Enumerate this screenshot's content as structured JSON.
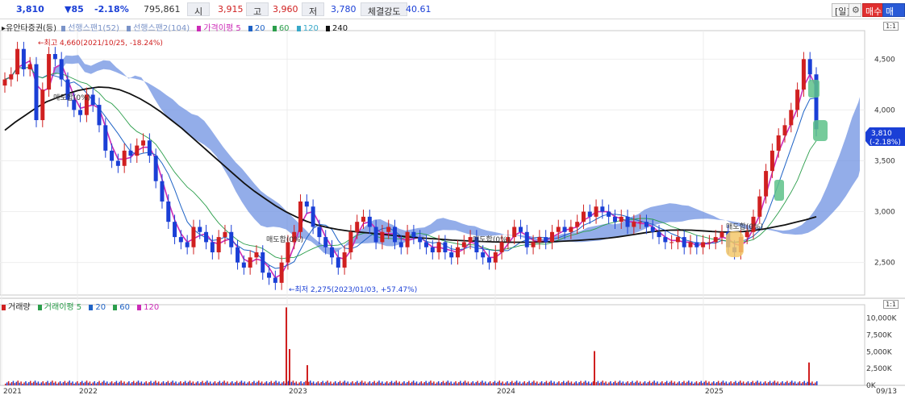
{
  "quote": {
    "price": "3,810",
    "change": "▼85",
    "change_pct": "-2.18%",
    "volume": "795,861",
    "open_label": "시",
    "open": "3,915",
    "high_label": "고",
    "high": "3,960",
    "low_label": "저",
    "low": "3,780",
    "strength_label": "체결강도",
    "strength": "40.61"
  },
  "toolbar": {
    "period": "[일]",
    "gear": "⚙",
    "buy": "매수",
    "sell": "매도"
  },
  "price_pane": {
    "header_name": "▸유안타증권(등)",
    "legend": [
      {
        "text": "선행스팬1(52)",
        "color": "#7a93c8"
      },
      {
        "text": "선행스팬2(104)",
        "color": "#7a93c8"
      },
      {
        "text": "가격이평 5",
        "color": "#cc2bb7"
      },
      {
        "text": "20",
        "color": "#1f63c6"
      },
      {
        "text": "60",
        "color": "#2b9e4b"
      },
      {
        "text": "120",
        "color": "#38a8c8"
      },
      {
        "text": "240",
        "color": "#111111"
      }
    ],
    "corner": "1:1"
  },
  "volume_pane": {
    "legend": [
      {
        "text": "거래량",
        "color": "#d02020"
      },
      {
        "text": "거래이평 5",
        "color": "#2b9e4b"
      },
      {
        "text": "20",
        "color": "#1f63c6"
      },
      {
        "text": "60",
        "color": "#2b9e4b"
      },
      {
        "text": "120",
        "color": "#cc2bb7"
      }
    ],
    "corner": "1:1"
  },
  "annotations": {
    "high": "←최고 4,660(2021/10/25, -18.24%)",
    "low": "←최저 2,275(2023/01/03, +57.47%)",
    "chip1": "매도합(0%)",
    "chip2": "매도합(0%)",
    "chip3": "매도합(0%)",
    "chip4": "매도합(0%)"
  },
  "price_tag": {
    "price": "3,810",
    "pct": "(-2.18%)"
  },
  "date_tag": "09/13",
  "chart_data": [
    {
      "type": "candlestick",
      "title": "유안타증권",
      "x_ticks": [
        "2021",
        "2022",
        "2023",
        "2024",
        "2025"
      ],
      "y_ticks": [
        2500,
        3000,
        3500,
        4000,
        4500
      ],
      "ylim": [
        2180,
        4780
      ],
      "series_names": [
        "선행스팬1(52)",
        "선행스팬2(104)",
        "가격이평 5",
        "20",
        "60",
        "120",
        "240"
      ],
      "close": [
        4300,
        4350,
        4600,
        4400,
        4450,
        3900,
        4200,
        4550,
        4500,
        4300,
        4100,
        4000,
        3950,
        4150,
        4050,
        3850,
        3600,
        3500,
        3450,
        3600,
        3550,
        3650,
        3700,
        3550,
        3300,
        3100,
        2900,
        2750,
        2700,
        2650,
        2850,
        2800,
        2700,
        2600,
        2750,
        2800,
        2650,
        2500,
        2450,
        2550,
        2600,
        2400,
        2350,
        2300,
        2500,
        2700,
        2800,
        3100,
        3050,
        2850,
        2750,
        2650,
        2550,
        2450,
        2600,
        2800,
        2900,
        2950,
        2850,
        2700,
        2800,
        2850,
        2700,
        2650,
        2800,
        2750,
        2700,
        2650,
        2600,
        2700,
        2600,
        2550,
        2650,
        2700,
        2750,
        2600,
        2550,
        2500,
        2600,
        2700,
        2750,
        2850,
        2800,
        2650,
        2700,
        2750,
        2700,
        2800,
        2850,
        2800,
        2850,
        2900,
        3000,
        2950,
        3050,
        3000,
        2950,
        2900,
        2950,
        2850,
        2900,
        2900,
        2850,
        2800,
        2750,
        2700,
        2700,
        2750,
        2650,
        2700,
        2650,
        2700,
        2700,
        2750,
        2800,
        2650,
        2600,
        2750,
        2800,
        2950,
        3150,
        3400,
        3600,
        3750,
        3850,
        4000,
        4200,
        4500,
        4350,
        3810
      ],
      "ma240": [
        3800,
        3880,
        3950,
        4020,
        4080,
        4120,
        4160,
        4190,
        4210,
        4225,
        4220,
        4200,
        4160,
        4110,
        4050,
        3980,
        3900,
        3820,
        3730,
        3640,
        3550,
        3460,
        3370,
        3280,
        3200,
        3130,
        3060,
        3000,
        2950,
        2905,
        2870,
        2845,
        2825,
        2810,
        2800,
        2790,
        2780,
        2770,
        2760,
        2750,
        2742,
        2735,
        2728,
        2720,
        2715,
        2710,
        2706,
        2702,
        2700,
        2699,
        2699,
        2700,
        2702,
        2706,
        2711,
        2717,
        2724,
        2731,
        2740,
        2752,
        2767,
        2784,
        2800,
        2812,
        2818,
        2820,
        2818,
        2812,
        2805,
        2800,
        2800,
        2805,
        2815,
        2830,
        2850,
        2870,
        2895,
        2920,
        2950
      ]
    },
    {
      "type": "bar",
      "title": "거래량",
      "y_ticks": [
        "0K",
        "2,500K",
        "5,000K",
        "7,500K",
        "10,000K"
      ],
      "ylim": [
        0,
        12000
      ],
      "x_ticks": [
        "2021",
        "2022",
        "2023",
        "2024",
        "2025"
      ],
      "spikes": [
        {
          "date": "2023-01",
          "value": 11600
        },
        {
          "date": "2023-01",
          "value": 5400
        },
        {
          "date": "2023-02",
          "value": 3000
        },
        {
          "date": "2024-03",
          "value": 5100
        },
        {
          "date": "2025-09",
          "value": 3400
        }
      ]
    }
  ]
}
